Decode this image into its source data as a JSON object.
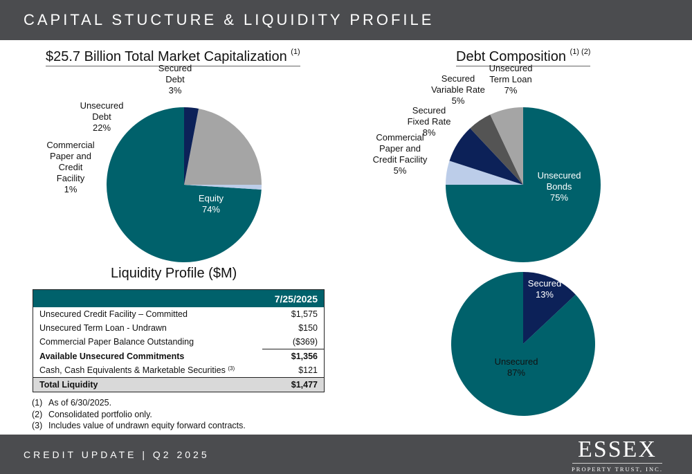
{
  "header": {
    "title": "CAPITAL STUCTURE & LIQUIDITY PROFILE"
  },
  "market_cap": {
    "title": "$25.7 Billion Total Market Capitalization",
    "note_ref": "(1)"
  },
  "debt_composition": {
    "title": "Debt Composition",
    "note_ref": "(1) (2)"
  },
  "colors": {
    "teal": "#00616b",
    "navy": "#0c2158",
    "gray": "#a5a5a5",
    "light_blue": "#bccde9",
    "dark_gray": "#545454"
  },
  "chart_data": [
    {
      "type": "pie",
      "categories": [
        "Equity",
        "Commercial Paper and Credit Facility",
        "Unsecured Debt",
        "Secured Debt"
      ],
      "values": [
        74,
        1,
        22,
        3
      ],
      "labels": [
        "Equity\n74%",
        "Commercial\nPaper and\nCredit\nFacility\n1%",
        "Unsecured\nDebt\n22%",
        "Secured\nDebt\n3%"
      ],
      "colors": [
        "#00616b",
        "#bccde9",
        "#a5a5a5",
        "#0c2158"
      ]
    },
    {
      "type": "pie",
      "categories": [
        "Unsecured Bonds",
        "Commercial Paper and Credit Facility",
        "Secured Fixed Rate",
        "Secured Variable Rate",
        "Unsecured Term Loan"
      ],
      "values": [
        75,
        5,
        8,
        5,
        7
      ],
      "labels": [
        "Unsecured\nBonds\n75%",
        "Commercial\nPaper and\nCredit Facility\n5%",
        "Secured\nFixed Rate\n8%",
        "Secured\nVariable Rate\n5%",
        "Unsecured\nTerm Loan\n7%"
      ],
      "colors": [
        "#00616b",
        "#bccde9",
        "#0c2158",
        "#545454",
        "#a5a5a5"
      ]
    },
    {
      "type": "pie",
      "categories": [
        "Secured",
        "Unsecured"
      ],
      "values": [
        13,
        87
      ],
      "labels": [
        "Secured\n13%",
        "Unsecured\n87%"
      ],
      "colors": [
        "#0c2158",
        "#00616b"
      ]
    }
  ],
  "liquidity": {
    "title": "Liquidity Profile ($M)",
    "date_header": "7/25/2025",
    "rows": [
      {
        "label": "Unsecured Credit Facility – Committed",
        "value": "$1,575"
      },
      {
        "label": "Unsecured Term Loan - Undrawn",
        "value": "$150"
      },
      {
        "label": "Commercial Paper Balance Outstanding",
        "value": "($369)"
      },
      {
        "label": "Available Unsecured Commitments",
        "value": "$1,356"
      },
      {
        "label": "Cash, Cash Equivalents & Marketable Securities",
        "note_ref": "(3)",
        "value": "$121"
      },
      {
        "label": "Total Liquidity",
        "value": "$1,477"
      }
    ]
  },
  "notes": [
    {
      "num": "(1)",
      "text": "As of 6/30/2025."
    },
    {
      "num": "(2)",
      "text": "Consolidated portfolio only."
    },
    {
      "num": "(3)",
      "text": "Includes value of undrawn equity forward contracts."
    }
  ],
  "footer": {
    "text": "CREDIT UPDATE | Q2 2025",
    "logo_word": "ESSEX",
    "logo_sub": "PROPERTY TRUST, INC."
  }
}
